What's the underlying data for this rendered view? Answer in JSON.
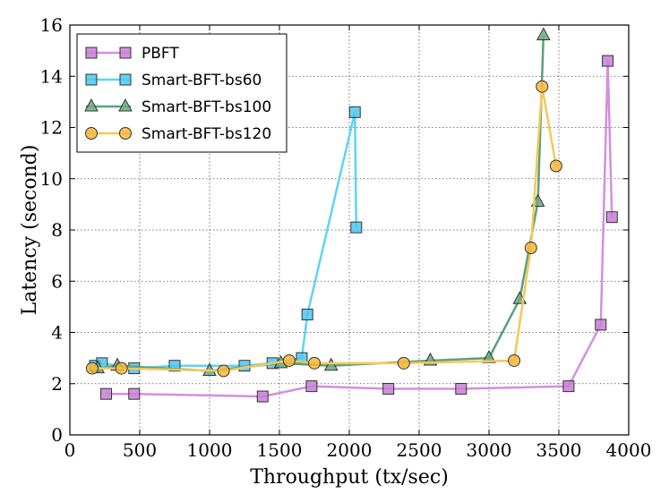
{
  "chart_data": {
    "type": "line",
    "title": "",
    "xlabel": "Throughput (tx/sec)",
    "ylabel": "Latency (second)",
    "xlim": [
      0,
      4000
    ],
    "ylim": [
      0,
      16
    ],
    "xticks": [
      "0",
      "500",
      "1000",
      "1500",
      "2000",
      "2500",
      "3000",
      "3500",
      "4000"
    ],
    "yticks": [
      "0",
      "2",
      "4",
      "6",
      "8",
      "10",
      "12",
      "14",
      "16"
    ],
    "grid": true,
    "legend_position": "top-left",
    "series": [
      {
        "name": "PBFT",
        "marker": "square",
        "line_color": "#d38fe0",
        "marker_color": "#c77fd6",
        "points": [
          [
            260,
            1.6
          ],
          [
            460,
            1.6
          ],
          [
            1380,
            1.5
          ],
          [
            1730,
            1.9
          ],
          [
            2280,
            1.8
          ],
          [
            2800,
            1.8
          ],
          [
            3570,
            1.9
          ],
          [
            3800,
            4.3
          ],
          [
            3850,
            14.6
          ],
          [
            3880,
            8.5
          ]
        ]
      },
      {
        "name": "Smart-BFT-bs60",
        "marker": "square",
        "line_color": "#5fd3f3",
        "marker_color": "#4cc7ee",
        "points": [
          [
            180,
            2.7
          ],
          [
            230,
            2.8
          ],
          [
            460,
            2.6
          ],
          [
            750,
            2.7
          ],
          [
            1250,
            2.7
          ],
          [
            1450,
            2.8
          ],
          [
            1660,
            3.0
          ],
          [
            1700,
            4.7
          ],
          [
            2040,
            12.6
          ],
          [
            2050,
            8.1
          ]
        ]
      },
      {
        "name": "Smart-BFT-bs100",
        "marker": "triangle",
        "line_color": "#5aa17a",
        "marker_color": "#6aaa80",
        "points": [
          [
            200,
            2.6
          ],
          [
            340,
            2.7
          ],
          [
            1000,
            2.5
          ],
          [
            1510,
            2.8
          ],
          [
            1870,
            2.7
          ],
          [
            2580,
            2.9
          ],
          [
            3000,
            3.0
          ],
          [
            3220,
            5.3
          ],
          [
            3350,
            9.1
          ],
          [
            3390,
            15.6
          ]
        ]
      },
      {
        "name": "Smart-BFT-bs120",
        "marker": "circle",
        "line_color": "#f6c75a",
        "marker_color": "#f5b73b",
        "points": [
          [
            160,
            2.6
          ],
          [
            370,
            2.6
          ],
          [
            1100,
            2.5
          ],
          [
            1570,
            2.9
          ],
          [
            1750,
            2.8
          ],
          [
            2390,
            2.8
          ],
          [
            3180,
            2.9
          ],
          [
            3300,
            7.3
          ],
          [
            3380,
            13.6
          ],
          [
            3480,
            10.5
          ]
        ]
      }
    ]
  }
}
